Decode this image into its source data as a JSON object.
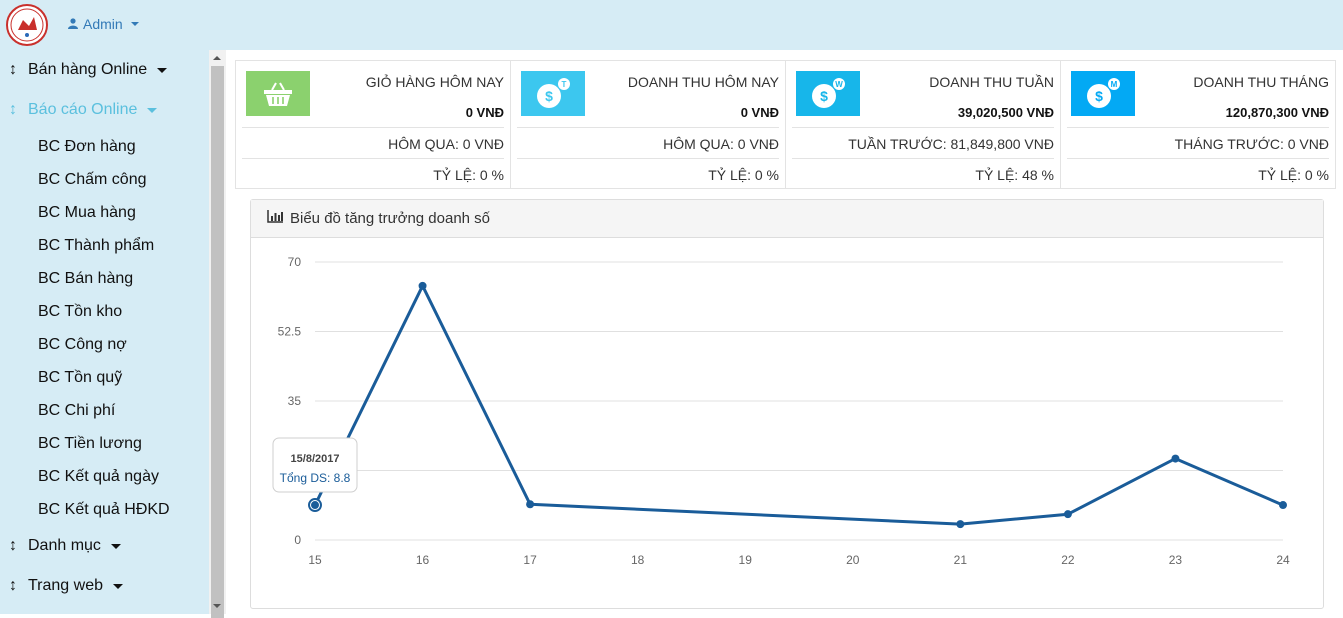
{
  "topbar": {
    "user_label": "Admin"
  },
  "sidebar": {
    "groups": [
      {
        "label": "Bán hàng Online"
      },
      {
        "label": "Báo cáo Online"
      },
      {
        "label": "Danh mục"
      },
      {
        "label": "Trang web"
      }
    ],
    "report_items": [
      "BC Đơn hàng",
      "BC Chấm công",
      "BC Mua hàng",
      "BC Thành phẩm",
      "BC Bán hàng",
      "BC Tồn kho",
      "BC Công nợ",
      "BC Tồn quỹ",
      "BC Chi phí",
      "BC Tiền lương",
      "BC Kết quả ngày",
      "BC Kết quả HĐKD"
    ]
  },
  "stats": [
    {
      "title": "GIỎ HÀNG HÔM NAY",
      "value": "0 VNĐ",
      "prev": "HÔM QUA: 0 VNĐ",
      "ratio": "TỶ LỆ: 0 %",
      "icon": "basket-icon",
      "color": "#8bd16e"
    },
    {
      "title": "DOANH THU HÔM NAY",
      "value": "0 VNĐ",
      "prev": "HÔM QUA: 0 VNĐ",
      "ratio": "TỶ LỆ: 0 %",
      "icon": "dollar-icon",
      "badge": "T",
      "color": "#3cc7ef"
    },
    {
      "title": "DOANH THU TUẦN",
      "value": "39,020,500 VNĐ",
      "prev": "TUẦN TRƯỚC: 81,849,800 VNĐ",
      "ratio": "TỶ LỆ: 48 %",
      "icon": "dollar-icon",
      "badge": "W",
      "color": "#17b6ea"
    },
    {
      "title": "DOANH THU THÁNG",
      "value": "120,870,300 VNĐ",
      "prev": "THÁNG TRƯỚC: 0 VNĐ",
      "ratio": "TỶ LỆ: 0 %",
      "icon": "dollar-icon",
      "badge": "M",
      "color": "#03a9f4"
    }
  ],
  "panel": {
    "title": "Biểu đồ tăng trưởng doanh số"
  },
  "tooltip": {
    "date": "15/8/2017",
    "text": "Tổng DS: 8.8"
  },
  "colors": {
    "accent": "#1a5c99",
    "topbar": "#d6ecf5"
  },
  "chart_data": {
    "type": "line",
    "x": [
      "15",
      "16",
      "17",
      "18",
      "19",
      "20",
      "21",
      "22",
      "23",
      "24"
    ],
    "points": [
      {
        "x": "15",
        "y": 8.8
      },
      {
        "x": "16",
        "y": 64
      },
      {
        "x": "17",
        "y": 9
      },
      {
        "x": "21",
        "y": 4
      },
      {
        "x": "22",
        "y": 6.5
      },
      {
        "x": "23",
        "y": 20.5
      },
      {
        "x": "24",
        "y": 8.8
      }
    ],
    "yticks": [
      "0",
      "17.5",
      "35",
      "52.5",
      "70"
    ],
    "ylim": [
      0,
      70
    ],
    "grid": true
  }
}
